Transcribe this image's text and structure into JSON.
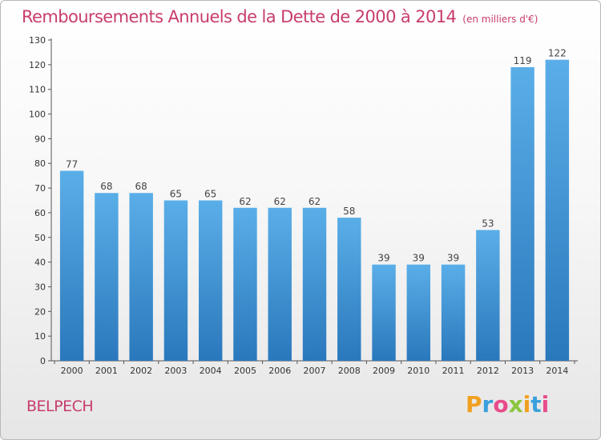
{
  "chart_data": {
    "type": "bar",
    "title": "Remboursements Annuels de la Dette de 2000 à 2014",
    "subtitle": "(en milliers d'€)",
    "categories": [
      "2000",
      "2001",
      "2002",
      "2003",
      "2004",
      "2005",
      "2006",
      "2007",
      "2008",
      "2009",
      "2010",
      "2011",
      "2012",
      "2013",
      "2014"
    ],
    "values": [
      77,
      68,
      68,
      65,
      65,
      62,
      62,
      62,
      58,
      39,
      39,
      39,
      53,
      119,
      122
    ],
    "ylim": [
      0,
      130
    ],
    "yticks": [
      0,
      10,
      20,
      30,
      40,
      50,
      60,
      70,
      80,
      90,
      100,
      110,
      120,
      130
    ],
    "grid": false,
    "bar_color": "#4a9edc",
    "bar_color_dark": "#2a78bc"
  },
  "footer": {
    "commune": "BELPECH",
    "logo_letters": [
      "P",
      "r",
      "o",
      "x",
      "i",
      "t",
      "i"
    ],
    "logo_colors": [
      "#f0a020",
      "#3aa0dc",
      "#e84c8a",
      "#8cc63f",
      "#f0a020",
      "#3aa0dc",
      "#e84c8a"
    ]
  }
}
